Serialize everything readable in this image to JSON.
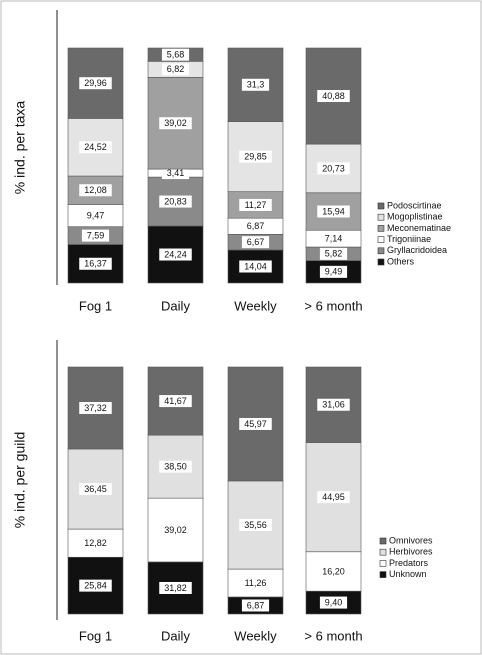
{
  "chart_data": [
    {
      "type": "stacked_percent",
      "ylabel": "% ind. per taxa",
      "categories": [
        "Fog 1",
        "Daily",
        "Weekly",
        "> 6 month"
      ],
      "ylim": [
        0,
        100
      ],
      "series": [
        {
          "name": "Others",
          "color": "#111111",
          "values": [
            16.37,
            24.24,
            14.04,
            9.49
          ],
          "value_labels": [
            "16,37",
            "24,24",
            "14,04",
            "9,49"
          ]
        },
        {
          "name": "Gryllacridoidea",
          "color": "#8a8a8a",
          "values": [
            7.59,
            20.83,
            6.67,
            5.82
          ],
          "value_labels": [
            "7,59",
            "20,83",
            "6,67",
            "5,82"
          ]
        },
        {
          "name": "Trigoniinae",
          "color": "#ffffff",
          "values": [
            9.47,
            3.41,
            6.87,
            7.14
          ],
          "value_labels": [
            "9,47",
            "3,41",
            "6,87",
            "7,14"
          ]
        },
        {
          "name": "Meconematinae",
          "color": "#a0a0a0",
          "values": [
            12.08,
            39.02,
            11.27,
            15.94
          ],
          "value_labels": [
            "12,08",
            "39,02",
            "11,27",
            "15,94"
          ]
        },
        {
          "name": "Mogoplistinae",
          "color": "#e4e4e4",
          "values": [
            24.52,
            6.82,
            29.85,
            20.73
          ],
          "value_labels": [
            "24,52",
            "6,82",
            "29,85",
            "20,73"
          ]
        },
        {
          "name": "Podoscirtinae",
          "color": "#6a6a6a",
          "values": [
            29.96,
            5.68,
            31.3,
            40.88
          ],
          "value_labels": [
            "29,96",
            "5,68",
            "31,3",
            "40,88"
          ]
        }
      ]
    },
    {
      "type": "stacked_percent",
      "ylabel": "% ind. per guild",
      "categories": [
        "Fog 1",
        "Daily",
        "Weekly",
        "> 6 month"
      ],
      "ylim": [
        0,
        100
      ],
      "series": [
        {
          "name": "Unknown",
          "color": "#111111",
          "values": [
            25.84,
            31.82,
            6.87,
            9.4
          ],
          "value_labels": [
            "25,84",
            "31,82",
            "6,87",
            "9,40"
          ]
        },
        {
          "name": "Predators",
          "color": "#ffffff",
          "values": [
            12.82,
            39.02,
            11.26,
            16.2
          ],
          "value_labels": [
            "12,82",
            "39,02",
            "11,26",
            "16,20"
          ]
        },
        {
          "name": "Herbivores",
          "color": "#e0e0e0",
          "values": [
            36.45,
            38.5,
            35.56,
            44.95
          ],
          "value_labels": [
            "36,45",
            "38,50",
            "35,56",
            "44,95"
          ]
        },
        {
          "name": "Omnivores",
          "color": "#6a6a6a",
          "values": [
            37.32,
            41.67,
            45.97,
            31.06
          ],
          "value_labels": [
            "37,32",
            "41,67",
            "45,97",
            "31,06"
          ]
        }
      ]
    }
  ]
}
